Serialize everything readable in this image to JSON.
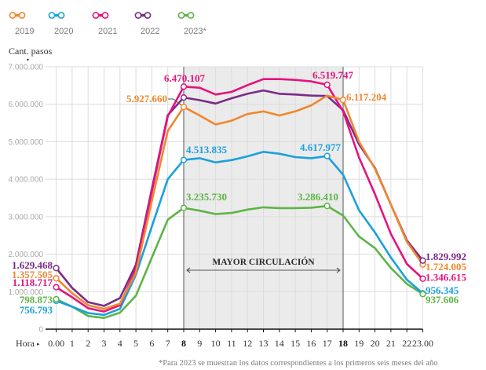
{
  "chart_data": {
    "type": "line",
    "title": "",
    "ylabel": "Cant. pasos",
    "xlabel": "Hora",
    "x": [
      0,
      1,
      2,
      3,
      4,
      5,
      6,
      7,
      8,
      9,
      10,
      11,
      12,
      13,
      14,
      15,
      16,
      17,
      18,
      19,
      20,
      21,
      22,
      23
    ],
    "xtick_labels": [
      "0.00",
      "1",
      "2",
      "3",
      "4",
      "5",
      "6",
      "7",
      "8",
      "9",
      "10",
      "11",
      "12",
      "13",
      "14",
      "15",
      "16",
      "17",
      "18",
      "19",
      "20",
      "21",
      "22",
      "23.00"
    ],
    "xtick_emphasis": [
      8,
      18
    ],
    "yticks": [
      0,
      1000000,
      2000000,
      3000000,
      4000000,
      5000000,
      6000000,
      7000000
    ],
    "ytick_labels": [
      "0",
      "1.000.000",
      "2.000.000",
      "3.000.000",
      "4.000.000",
      "5.000.000",
      "6.000.000",
      "7.000.000"
    ],
    "ylim": [
      0,
      7000000
    ],
    "xlim": [
      0,
      23
    ],
    "grid": true,
    "legend_position": "top-left",
    "legend": [
      {
        "label": "2019",
        "color": "#f0872d"
      },
      {
        "label": "2020",
        "color": "#1ba0dc"
      },
      {
        "label": "2021",
        "color": "#e5137e"
      },
      {
        "label": "2022",
        "color": "#7b2b87"
      },
      {
        "label": "2023*",
        "color": "#5db446"
      }
    ],
    "highlight": {
      "from": 8,
      "to": 18,
      "label": "MAYOR CIRCULACIÓN",
      "color": "#ebebeb"
    },
    "series": [
      {
        "name": "2019",
        "color": "#f0872d",
        "values": [
          1357505,
          960000,
          640000,
          540000,
          680000,
          1510000,
          3420000,
          5290000,
          5927660,
          5700000,
          5460000,
          5560000,
          5740000,
          5810000,
          5700000,
          5810000,
          5970000,
          6230000,
          6117204,
          5000000,
          4280000,
          3320000,
          2330000,
          1724005
        ]
      },
      {
        "name": "2020",
        "color": "#1ba0dc",
        "values": [
          756793,
          600000,
          430000,
          380000,
          540000,
          1450000,
          2740000,
          4000000,
          4513835,
          4560000,
          4450000,
          4510000,
          4610000,
          4730000,
          4680000,
          4590000,
          4560000,
          4617977,
          4120000,
          3170000,
          2580000,
          1910000,
          1320000,
          956345
        ]
      },
      {
        "name": "2021",
        "color": "#e5137e",
        "values": [
          1118717,
          850000,
          560000,
          470000,
          640000,
          1620000,
          3670000,
          5680000,
          6470107,
          6440000,
          6260000,
          6330000,
          6510000,
          6670000,
          6670000,
          6650000,
          6610000,
          6519747,
          5810000,
          4580000,
          3600000,
          2540000,
          1740000,
          1346615
        ]
      },
      {
        "name": "2022",
        "color": "#7b2b87",
        "values": [
          1629468,
          1100000,
          720000,
          620000,
          830000,
          1720000,
          3740000,
          5710000,
          6180000,
          6110000,
          6020000,
          6160000,
          6280000,
          6370000,
          6280000,
          6260000,
          6230000,
          6220000,
          5840000,
          4930000,
          4300000,
          3320000,
          2370000,
          1829992
        ]
      },
      {
        "name": "2023",
        "color": "#5db446",
        "values": [
          798873,
          600000,
          350000,
          300000,
          440000,
          890000,
          1910000,
          2920000,
          3235730,
          3160000,
          3070000,
          3100000,
          3190000,
          3250000,
          3230000,
          3230000,
          3240000,
          3286410,
          3030000,
          2470000,
          2160000,
          1630000,
          1210000,
          937606
        ]
      }
    ],
    "markers": [
      {
        "series": 0,
        "x": 0
      },
      {
        "series": 1,
        "x": 0
      },
      {
        "series": 2,
        "x": 0
      },
      {
        "series": 3,
        "x": 0
      },
      {
        "series": 4,
        "x": 0
      },
      {
        "series": 0,
        "x": 23
      },
      {
        "series": 1,
        "x": 23
      },
      {
        "series": 2,
        "x": 23
      },
      {
        "series": 3,
        "x": 23
      },
      {
        "series": 4,
        "x": 23
      },
      {
        "series": 2,
        "x": 8
      },
      {
        "series": 3,
        "x": 8
      },
      {
        "series": 0,
        "x": 8
      },
      {
        "series": 1,
        "x": 8
      },
      {
        "series": 4,
        "x": 8
      },
      {
        "series": 2,
        "x": 17
      },
      {
        "series": 0,
        "x": 18
      },
      {
        "series": 1,
        "x": 17
      },
      {
        "series": 4,
        "x": 17
      }
    ],
    "annotations": [
      {
        "series": 3,
        "x": 0,
        "text": "1.629.468"
      },
      {
        "series": 0,
        "x": 0,
        "text": "1.357.505"
      },
      {
        "series": 2,
        "x": 0,
        "text": "1.118.717"
      },
      {
        "series": 4,
        "x": 0,
        "text": "798.873"
      },
      {
        "series": 1,
        "x": 0,
        "text": "756.793"
      },
      {
        "series": 2,
        "x": 8,
        "text": "6.470.107"
      },
      {
        "series": 0,
        "x": 8,
        "text": "5.927.660"
      },
      {
        "series": 1,
        "x": 8,
        "text": "4.513.835"
      },
      {
        "series": 4,
        "x": 8,
        "text": "3.235.730"
      },
      {
        "series": 2,
        "x": 17,
        "text": "6.519.747"
      },
      {
        "series": 0,
        "x": 18,
        "text": "6.117.204"
      },
      {
        "series": 1,
        "x": 17,
        "text": "4.617.977"
      },
      {
        "series": 4,
        "x": 17,
        "text": "3.286.410"
      },
      {
        "series": 3,
        "x": 23,
        "text": "1.829.992"
      },
      {
        "series": 0,
        "x": 23,
        "text": "1.724.005"
      },
      {
        "series": 2,
        "x": 23,
        "text": "1.346.615"
      },
      {
        "series": 1,
        "x": 23,
        "text": "956.345"
      },
      {
        "series": 4,
        "x": 23,
        "text": "937.606"
      }
    ]
  },
  "footnote": "*Para 2023 se muestran los datos correspondientes a los primeros seis meses del año"
}
